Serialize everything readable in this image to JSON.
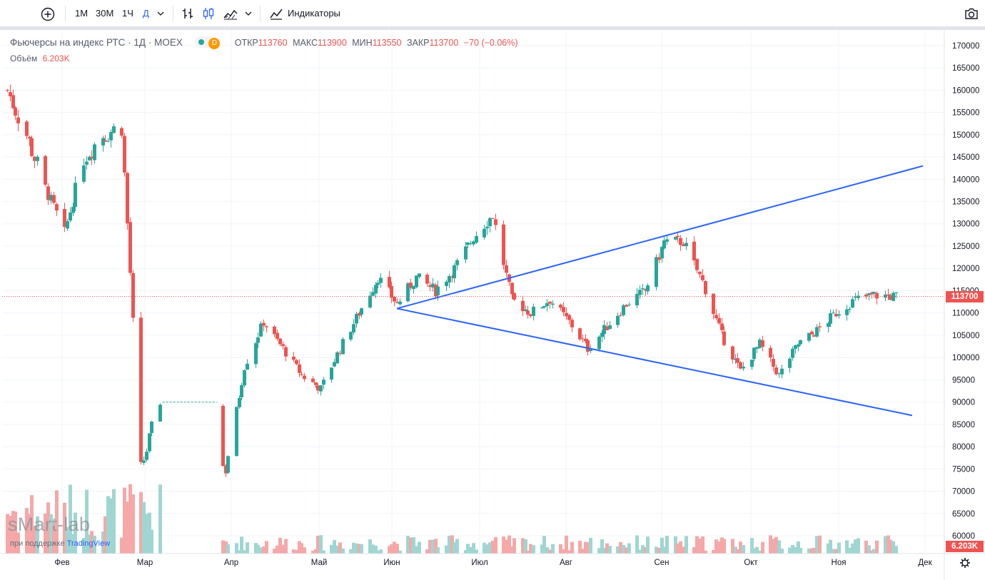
{
  "toolbar": {
    "intervals": [
      "1М",
      "30М",
      "1Ч",
      "Д"
    ],
    "active_interval": "Д",
    "indicators_label": "Индикаторы"
  },
  "legend": {
    "symbol": "Фьючерсы на индекс РТС · 1Д · MOEX",
    "open_label": "ОТКР",
    "open": "113760",
    "high_label": "МАКС",
    "high": "113900",
    "low_label": "МИН",
    "low": "113550",
    "close_label": "ЗАКР",
    "close": "113700",
    "change": "−70 (−0.06%)",
    "volume_label": "Объём",
    "volume": "6.203K",
    "status_letter": "D"
  },
  "watermark": {
    "brand": "sMart-lab",
    "sub_prefix": "при поддержке",
    "sub_brand": "TradingView"
  },
  "colors": {
    "up": "#26a69a",
    "down": "#ef5350",
    "trendline": "#2962ff",
    "grid": "#f0f3fa"
  },
  "chart_data": {
    "type": "candlestick",
    "title": "Фьючерсы на индекс РТС · 1Д · MOEX",
    "y_ticks": [
      60000,
      65000,
      70000,
      75000,
      80000,
      85000,
      90000,
      95000,
      100000,
      105000,
      110000,
      115000,
      120000,
      125000,
      130000,
      135000,
      140000,
      145000,
      150000,
      155000,
      160000,
      165000,
      170000
    ],
    "ylim": [
      56000,
      173500
    ],
    "x_labels": [
      "Фев",
      "Мар",
      "Апр",
      "Май",
      "Июн",
      "Июл",
      "Авг",
      "Сен",
      "Окт",
      "Ноя",
      "Дек"
    ],
    "last_price": "113700",
    "last_volume": "6.203K",
    "trading_halt": {
      "from": "2022-03-01",
      "to": "2022-03-23",
      "level": 90000
    },
    "series_close": [
      [
        "2022-01-03",
        160000
      ],
      [
        "2022-01-10",
        150000
      ],
      [
        "2022-01-17",
        138000
      ],
      [
        "2022-01-24",
        128000
      ],
      [
        "2022-01-31",
        145000
      ],
      [
        "2022-02-07",
        150000
      ],
      [
        "2022-02-14",
        152000
      ],
      [
        "2022-02-21",
        75000
      ],
      [
        "2022-02-28",
        90000
      ],
      [
        "2022-03-24",
        75000
      ],
      [
        "2022-03-31",
        98000
      ],
      [
        "2022-04-07",
        108000
      ],
      [
        "2022-04-14",
        102000
      ],
      [
        "2022-04-21",
        96000
      ],
      [
        "2022-04-28",
        93000
      ],
      [
        "2022-05-05",
        102000
      ],
      [
        "2022-05-12",
        110000
      ],
      [
        "2022-05-19",
        118000
      ],
      [
        "2022-05-26",
        112000
      ],
      [
        "2022-06-02",
        118000
      ],
      [
        "2022-06-09",
        115000
      ],
      [
        "2022-06-16",
        120000
      ],
      [
        "2022-06-23",
        127000
      ],
      [
        "2022-06-30",
        132000
      ],
      [
        "2022-07-07",
        113000
      ],
      [
        "2022-07-14",
        110000
      ],
      [
        "2022-07-21",
        113000
      ],
      [
        "2022-07-28",
        108000
      ],
      [
        "2022-08-04",
        102000
      ],
      [
        "2022-08-11",
        107000
      ],
      [
        "2022-08-18",
        112000
      ],
      [
        "2022-08-25",
        115000
      ],
      [
        "2022-09-01",
        126000
      ],
      [
        "2022-09-08",
        126000
      ],
      [
        "2022-09-15",
        117000
      ],
      [
        "2022-09-22",
        105000
      ],
      [
        "2022-09-29",
        97000
      ],
      [
        "2022-10-06",
        103000
      ],
      [
        "2022-10-13",
        96000
      ],
      [
        "2022-10-20",
        103000
      ],
      [
        "2022-10-27",
        106000
      ],
      [
        "2022-11-03",
        110000
      ],
      [
        "2022-11-10",
        113000
      ],
      [
        "2022-11-17",
        114000
      ],
      [
        "2022-11-24",
        113700
      ]
    ],
    "trendlines": [
      {
        "from": [
          "2022-05-26",
          111000
        ],
        "to": [
          "2022-12-05",
          143000
        ]
      },
      {
        "from": [
          "2022-05-26",
          111000
        ],
        "to": [
          "2022-12-01",
          87000
        ]
      }
    ]
  }
}
